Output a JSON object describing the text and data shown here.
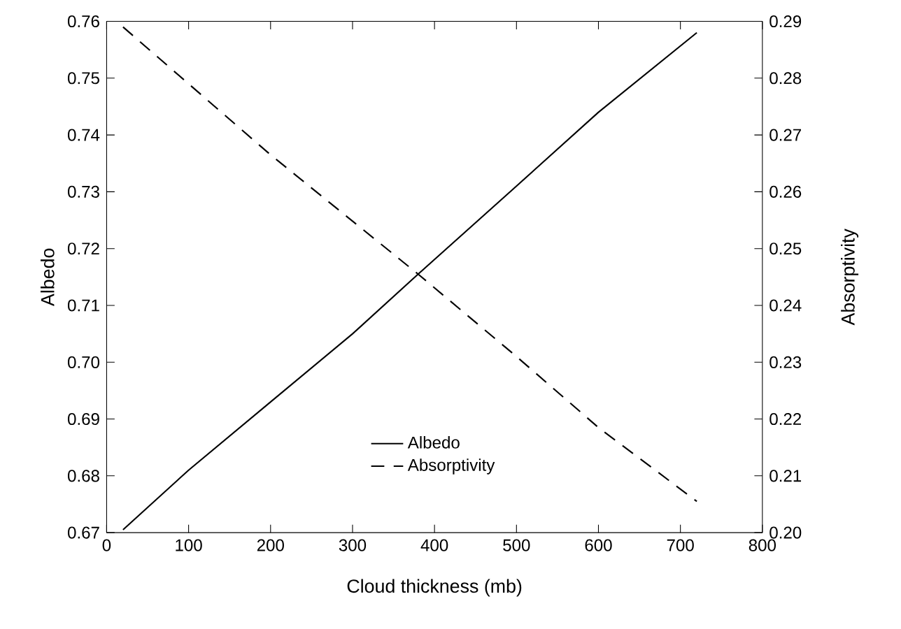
{
  "chart_data": {
    "type": "line",
    "xlabel": "Cloud thickness  (mb)",
    "ylabel": "Albedo",
    "y2label": "Absorptivity",
    "xlim": [
      0,
      800
    ],
    "xticks": [
      0,
      100,
      200,
      300,
      400,
      500,
      600,
      700,
      800
    ],
    "ylim": [
      0.67,
      0.76
    ],
    "yticks": [
      0.67,
      0.68,
      0.69,
      {
        "value": 0.7,
        "label": "0.70"
      },
      0.71,
      0.72,
      0.73,
      0.74,
      0.75,
      0.76
    ],
    "y2lim": [
      0.2,
      0.29
    ],
    "y2ticks": [
      {
        "value": 0.2,
        "label": "0.20"
      },
      0.21,
      0.22,
      0.23,
      0.24,
      0.25,
      0.26,
      0.27,
      0.28,
      0.29
    ],
    "legend": "bottom",
    "grid": false,
    "series": [
      {
        "name": "Albedo",
        "color": "#000000",
        "line_style": "solid",
        "x": [
          20,
          100,
          200,
          300,
          380,
          500,
          600,
          720
        ],
        "values": [
          0.6705,
          0.681,
          0.693,
          0.705,
          0.7155,
          0.731,
          0.744,
          0.758
        ]
      },
      {
        "name": "Absorptivity",
        "color": "#000000",
        "line_style": "dashed",
        "axis": "y2",
        "x": [
          20,
          200,
          380,
          500,
          600,
          720
        ],
        "values": [
          0.289,
          0.2665,
          0.2455,
          0.231,
          0.2185,
          0.2055
        ]
      }
    ]
  }
}
